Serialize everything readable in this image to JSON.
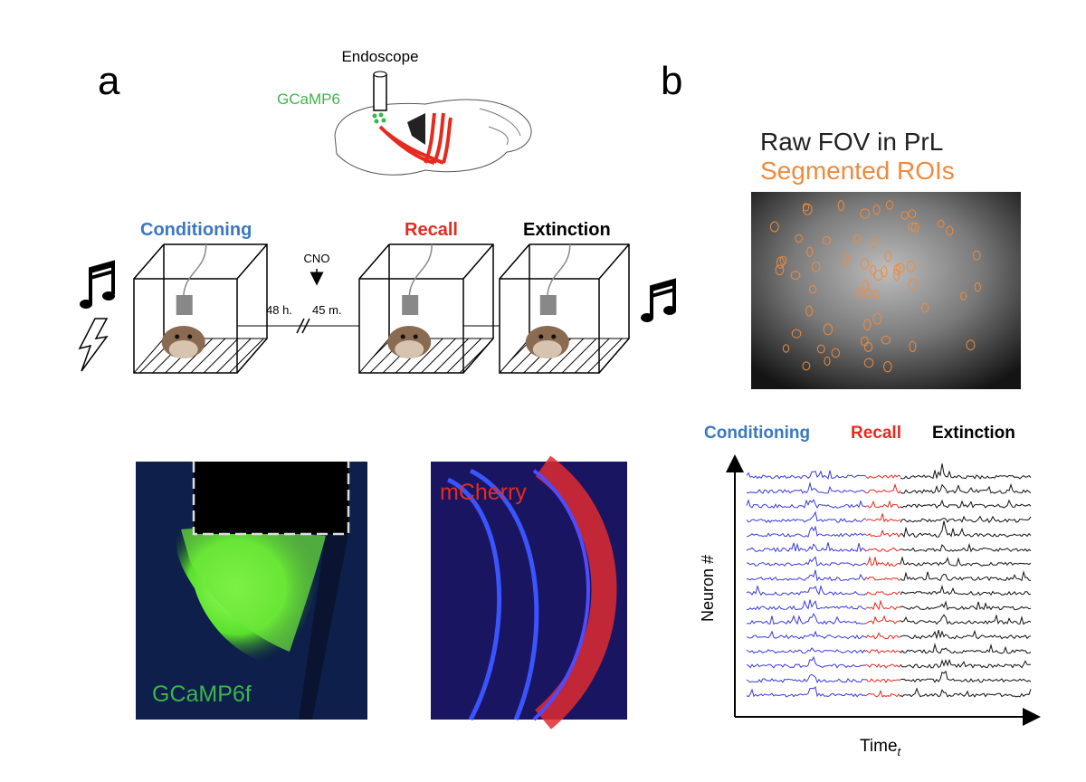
{
  "panel_a": {
    "label": "a",
    "endoscope": "Endoscope",
    "indicator": "GCaMP6",
    "stages": {
      "conditioning": "Conditioning",
      "recall": "Recall",
      "extinction": "Extinction"
    },
    "delay_1": "48 h.",
    "drug": "CNO",
    "delay_2": "45 m.",
    "histology": {
      "left": "GCaMP6f",
      "right": "mCherry"
    }
  },
  "panel_b": {
    "label": "b",
    "fov_title": "Raw FOV in PrL",
    "fov_subtitle": "Segmented ROIs",
    "legend": {
      "conditioning": "Conditioning",
      "recall": "Recall",
      "extinction": "Extinction"
    },
    "y_axis": "Neuron #",
    "x_axis": "Time",
    "x_axis_subscript": "t"
  }
}
